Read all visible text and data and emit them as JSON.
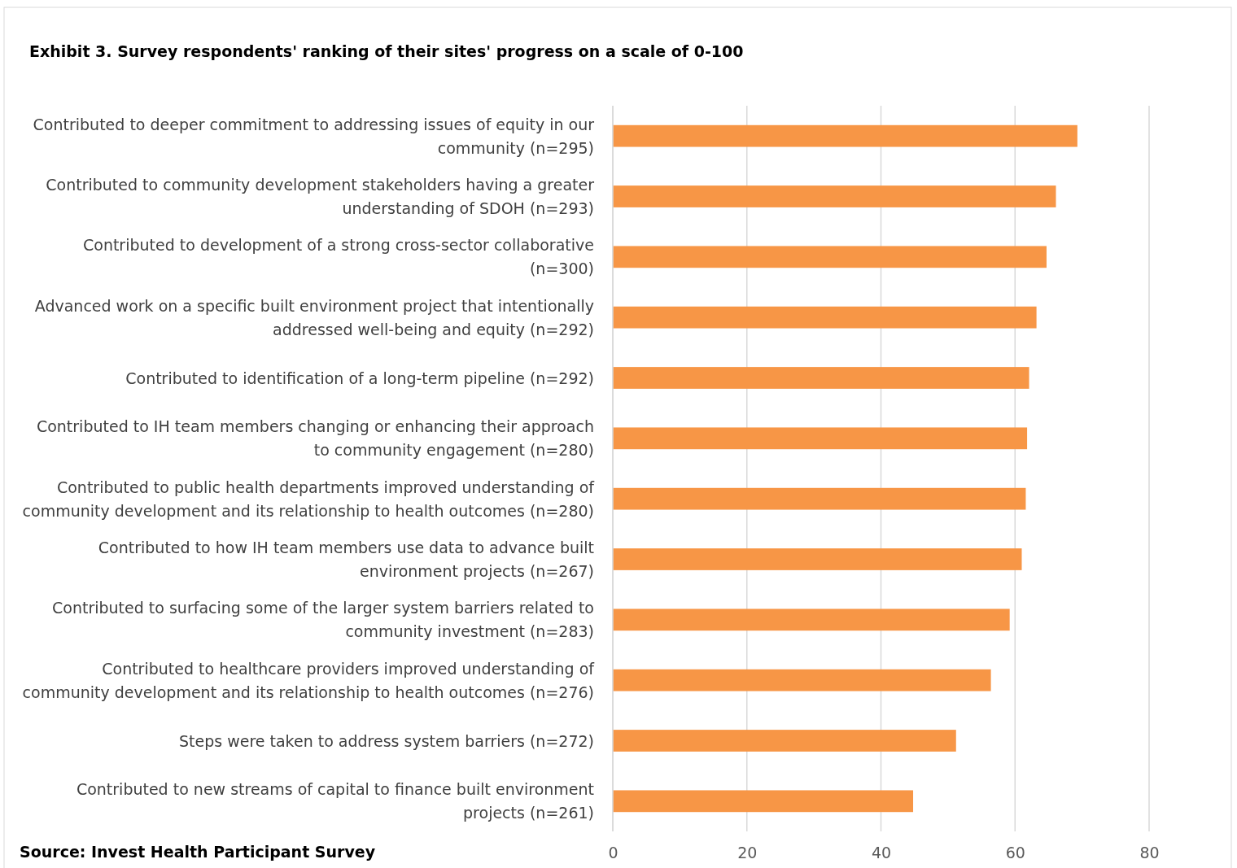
{
  "chart_data": {
    "type": "bar",
    "orientation": "horizontal",
    "title": "Exhibit 3. Survey respondents' ranking of their sites' progress on a scale of 0-100",
    "categories": [
      "Contributed to deeper commitment to addressing issues of equity in our community (n=295)",
      "Contributed to community development stakeholders having a greater understanding of SDOH (n=293)",
      "Contributed to development of a strong cross-sector collaborative (n=300)",
      "Advanced work on a specific built environment project that intentionally addressed well-being and equity (n=292)",
      "Contributed to identification of a long-term pipeline (n=292)",
      "Contributed to IH team members changing or enhancing their approach to community engagement (n=280)",
      "Contributed to public health departments improved understanding of community development and its relationship to health outcomes (n=280)",
      "Contributed to how IH team members use data to advance built environment projects (n=267)",
      "Contributed to surfacing some of the larger system barriers related to community investment (n=283)",
      "Contributed to healthcare providers improved understanding of community development and its relationship to health outcomes (n=276)",
      "Steps were taken to address system barriers (n=272)",
      "Contributed to new streams of capital to finance built environment projects (n=261)"
    ],
    "values": [
      69.3,
      66.1,
      64.7,
      63.2,
      62.1,
      61.8,
      61.6,
      61.0,
      59.2,
      56.4,
      51.2,
      44.8
    ],
    "color": "#f79646",
    "xlim": [
      0,
      80
    ],
    "xticks": [
      0,
      20,
      40,
      60,
      80
    ],
    "grid": "x",
    "annotations": [
      "Source:  Invest Health Participant Survey"
    ]
  }
}
